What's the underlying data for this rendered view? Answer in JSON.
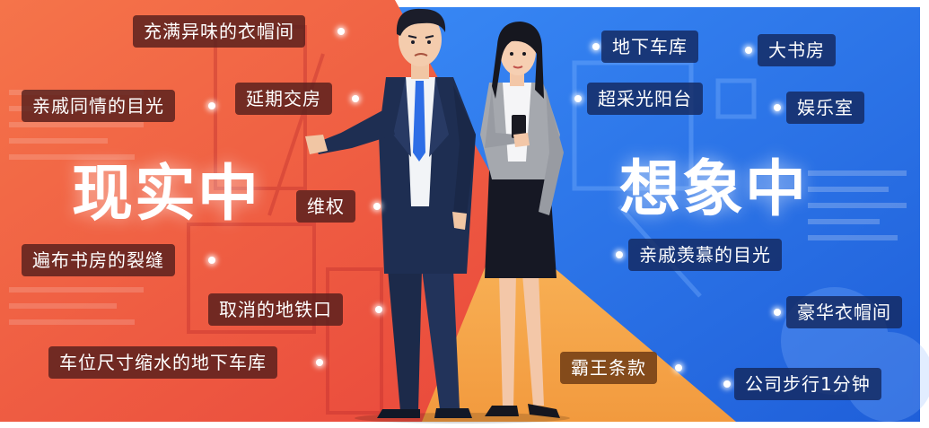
{
  "headline_left": "现实中",
  "headline_right": "想象中",
  "reality_tags": [
    "充满异味的衣帽间",
    "亲戚同情的目光",
    "延期交房",
    "维权",
    "遍布书房的裂缝",
    "取消的地铁口",
    "车位尺寸缩水的地下车库"
  ],
  "imagination_tags": [
    "地下车库",
    "大书房",
    "超采光阳台",
    "娱乐室",
    "亲戚羡慕的目光",
    "豪华衣帽间",
    "霸王条款",
    "公司步行1分钟"
  ],
  "colors": {
    "left_bg": "#f05a3c",
    "right_bg": "#2f7df0",
    "accent": "#f7a24a"
  }
}
